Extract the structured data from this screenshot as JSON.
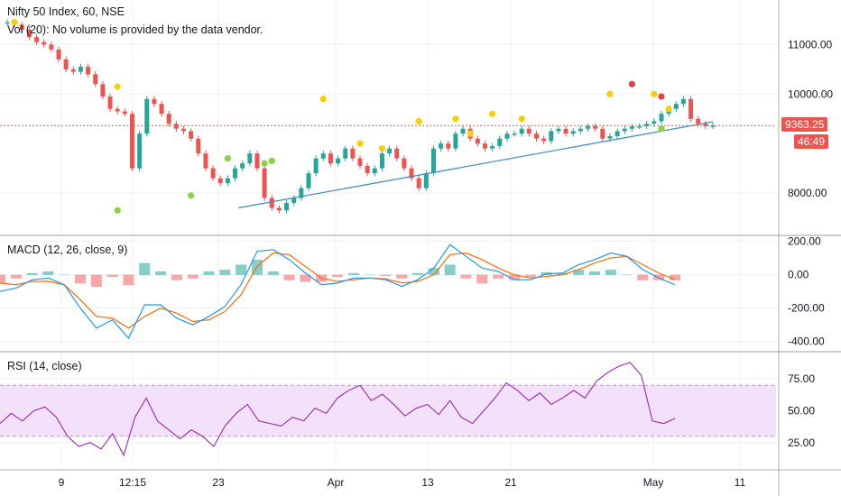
{
  "header": {
    "main_title": "Nifty 50 Index, 60, NSE",
    "volume_note": "Vol (20): No volume is provided by the data vendor.",
    "macd_title": "MACD (12, 26, close, 9)",
    "rsi_title": "RSI (14, close)"
  },
  "price_tags": {
    "last_price": "9363.25",
    "countdown": "46:49"
  },
  "colors": {
    "up": "#26a69a",
    "down": "#ef5350",
    "trendline": "#4a90c2",
    "macd_line": "#2196f3",
    "signal_line": "#ff6d00",
    "rsi_line": "#9c27b0",
    "rsi_band": "#f3e0fb",
    "yellow_dot": "#f9cf00",
    "red_dot": "#e04545",
    "green_dot": "#8bd345",
    "price_line": "#ef5350"
  },
  "chart_data": [
    {
      "type": "candlestick",
      "title": "Nifty 50 Index, 60, NSE",
      "y_ticks": [
        "11000.00",
        "10000.00",
        "8000.00"
      ],
      "ylim": [
        7200,
        11900
      ],
      "x_ticks": [
        "9",
        "12:15",
        "23",
        "Apr",
        "13",
        "21",
        "May",
        "11"
      ],
      "last_price": 9363.25,
      "close_series": [
        11450,
        11400,
        11300,
        11150,
        11050,
        11000,
        10900,
        10700,
        10500,
        10450,
        10550,
        10400,
        10200,
        9950,
        9700,
        9650,
        9600,
        8500,
        9200,
        9900,
        9800,
        9600,
        9400,
        9300,
        9250,
        9100,
        8800,
        8500,
        8300,
        8200,
        8300,
        8500,
        8600,
        8800,
        8500,
        7900,
        7700,
        7650,
        7800,
        7900,
        8100,
        8400,
        8700,
        8800,
        8600,
        8700,
        8900,
        8700,
        8550,
        8400,
        8500,
        8800,
        8900,
        8700,
        8500,
        8300,
        8100,
        8400,
        8900,
        9000,
        8900,
        9200,
        9300,
        9100,
        9000,
        8900,
        8950,
        9100,
        9200,
        9200,
        9300,
        9200,
        9100,
        9050,
        9250,
        9300,
        9200,
        9250,
        9300,
        9350,
        9300,
        9100,
        9150,
        9250,
        9300,
        9350,
        9350,
        9400,
        9450,
        9600,
        9700,
        9800,
        9900,
        9500,
        9400,
        9350,
        9363
      ],
      "trendline": {
        "from": [
          7700,
          "23"
        ],
        "to": [
          9440,
          "May"
        ]
      },
      "markers": {
        "yellow": [
          [
            11450,
            3
          ],
          [
            10150,
            37
          ],
          [
            9900,
            103
          ],
          [
            9000,
            115
          ],
          [
            8900,
            121
          ],
          [
            9450,
            135
          ],
          [
            9500,
            145
          ],
          [
            9200,
            151
          ],
          [
            9600,
            159
          ],
          [
            9500,
            168
          ],
          [
            10000,
            196
          ],
          [
            10000,
            210
          ],
          [
            9700,
            216
          ]
        ],
        "red": [
          [
            10200,
            203
          ],
          [
            9950,
            214
          ]
        ],
        "green": [
          [
            7650,
            35
          ],
          [
            7950,
            61
          ],
          [
            8700,
            72
          ],
          [
            8600,
            83
          ],
          [
            8650,
            86
          ],
          [
            9300,
            213
          ]
        ]
      }
    },
    {
      "type": "line",
      "title": "MACD (12, 26, close, 9)",
      "y_ticks": [
        "200.00",
        "0.00",
        "-200.00",
        "-400.00"
      ],
      "ylim": [
        -450,
        230
      ],
      "series": [
        {
          "name": "MACD",
          "values": [
            -100,
            -80,
            -30,
            -20,
            -60,
            -200,
            -320,
            -270,
            -380,
            -180,
            -180,
            -260,
            -300,
            -250,
            -190,
            -60,
            140,
            150,
            90,
            10,
            -60,
            -50,
            -20,
            -20,
            -30,
            -70,
            -30,
            40,
            180,
            110,
            40,
            20,
            -30,
            -30,
            5,
            10,
            60,
            90,
            130,
            110,
            30,
            -20,
            -60
          ]
        },
        {
          "name": "Signal",
          "values": [
            -50,
            -60,
            -40,
            -40,
            -60,
            -150,
            -250,
            -260,
            -320,
            -250,
            -200,
            -230,
            -280,
            -270,
            -220,
            -120,
            50,
            130,
            120,
            50,
            -20,
            -40,
            -30,
            -20,
            -25,
            -50,
            -40,
            0,
            120,
            130,
            90,
            40,
            0,
            -20,
            -10,
            0,
            30,
            70,
            100,
            110,
            60,
            10,
            -30
          ]
        }
      ]
    },
    {
      "type": "line",
      "title": "RSI (14, close)",
      "y_ticks": [
        "75.00",
        "50.00",
        "25.00"
      ],
      "ylim": [
        5,
        95
      ],
      "band": [
        30,
        70
      ],
      "series": [
        {
          "name": "RSI",
          "values": [
            40,
            48,
            42,
            50,
            53,
            45,
            30,
            22,
            25,
            20,
            32,
            15,
            45,
            60,
            42,
            35,
            28,
            35,
            30,
            22,
            38,
            48,
            55,
            42,
            40,
            38,
            45,
            42,
            52,
            48,
            60,
            66,
            70,
            58,
            63,
            55,
            46,
            52,
            55,
            47,
            58,
            45,
            40,
            50,
            60,
            72,
            66,
            58,
            64,
            55,
            60,
            66,
            60,
            73,
            80,
            85,
            88,
            78,
            42,
            40,
            44
          ]
        }
      ]
    }
  ]
}
